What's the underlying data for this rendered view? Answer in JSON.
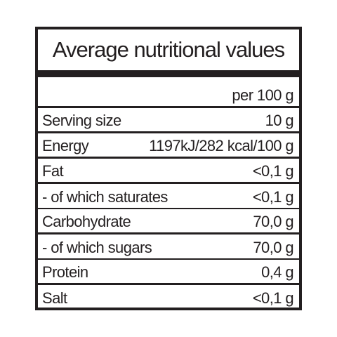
{
  "title": "Average nutritional values",
  "column_header": "per 100 g",
  "rows": [
    {
      "name": "Serving size",
      "value": "10 g"
    },
    {
      "name": "Energy",
      "value": "1197kJ/282 kcal/100 g"
    },
    {
      "name": "Fat",
      "value": "<0,1 g"
    },
    {
      "name": "- of which saturates",
      "value": "<0,1 g"
    },
    {
      "name": "Carbohydrate",
      "value": "70,0 g"
    },
    {
      "name": "- of which sugars",
      "value": "70,0 g"
    },
    {
      "name": "Protein",
      "value": "0,4 g"
    },
    {
      "name": "Salt",
      "value": "<0,1 g"
    }
  ],
  "colors": {
    "ink": "#231f20",
    "background": "#ffffff"
  }
}
